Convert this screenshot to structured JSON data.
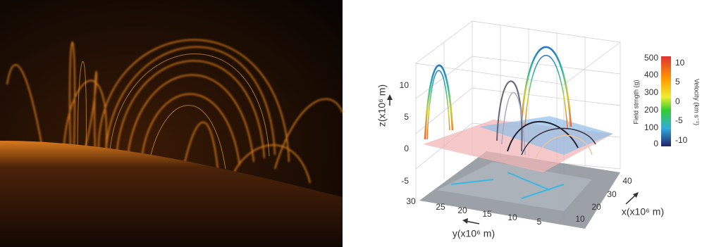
{
  "figure": {
    "right": {
      "z_axis": {
        "label": "z(x10⁶ m)",
        "ticks": [
          10,
          5,
          0,
          -5
        ]
      },
      "y_axis": {
        "label": "y(x10⁶ m)",
        "ticks": [
          30,
          25,
          20,
          15,
          10,
          5
        ]
      },
      "x_axis": {
        "label": "x(x10⁶ m)",
        "ticks": [
          10,
          20,
          30,
          40
        ]
      },
      "colorbar": {
        "field_label": "Field strngth (g)",
        "field_ticks": [
          500,
          400,
          300,
          200,
          100,
          0
        ],
        "velocity_label": "Velocity (km s⁻¹)",
        "velocity_ticks": [
          10,
          5,
          0,
          -5,
          -10
        ]
      }
    }
  }
}
